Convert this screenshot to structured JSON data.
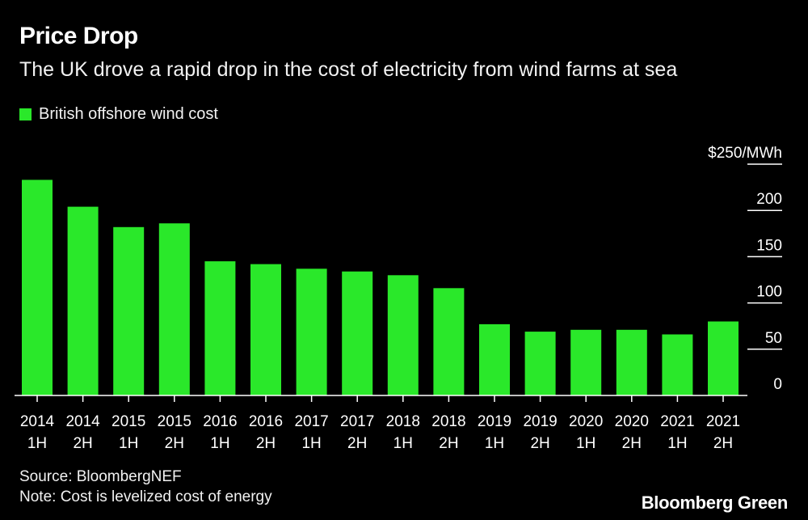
{
  "header": {
    "title": "Price Drop",
    "subtitle": "The UK drove a rapid drop in the cost of electricity from wind farms at sea"
  },
  "legend": {
    "label": "British offshore wind cost"
  },
  "footer": {
    "source": "Source: BloombergNEF",
    "note": "Note: Cost is levelized cost of energy"
  },
  "brand": "Bloomberg Green",
  "colors": {
    "bar": "#2ae82a",
    "background": "#000000",
    "text": "#ffffff"
  },
  "chart_data": {
    "type": "bar",
    "title": "Price Drop",
    "subtitle": "The UK drove a rapid drop in the cost of electricity from wind farms at sea",
    "categories": [
      [
        "2014",
        "1H"
      ],
      [
        "2014",
        "2H"
      ],
      [
        "2015",
        "1H"
      ],
      [
        "2015",
        "2H"
      ],
      [
        "2016",
        "1H"
      ],
      [
        "2016",
        "2H"
      ],
      [
        "2017",
        "1H"
      ],
      [
        "2017",
        "2H"
      ],
      [
        "2018",
        "1H"
      ],
      [
        "2018",
        "2H"
      ],
      [
        "2019",
        "1H"
      ],
      [
        "2019",
        "2H"
      ],
      [
        "2020",
        "1H"
      ],
      [
        "2020",
        "2H"
      ],
      [
        "2021",
        "1H"
      ],
      [
        "2021",
        "2H"
      ]
    ],
    "series": [
      {
        "name": "British offshore wind cost",
        "values": [
          233,
          204,
          182,
          186,
          145,
          142,
          137,
          134,
          130,
          116,
          77,
          69,
          71,
          71,
          66,
          80
        ]
      }
    ],
    "ylim": [
      0,
      250
    ],
    "y_ticks": [
      {
        "value": 250,
        "label": "$250/MWh"
      },
      {
        "value": 200,
        "label": "200"
      },
      {
        "value": 150,
        "label": "150"
      },
      {
        "value": 100,
        "label": "100"
      },
      {
        "value": 50,
        "label": "50"
      },
      {
        "value": 0,
        "label": "0"
      }
    ],
    "y_axis_position": "right",
    "grid": false,
    "legend_position": "top-left"
  }
}
